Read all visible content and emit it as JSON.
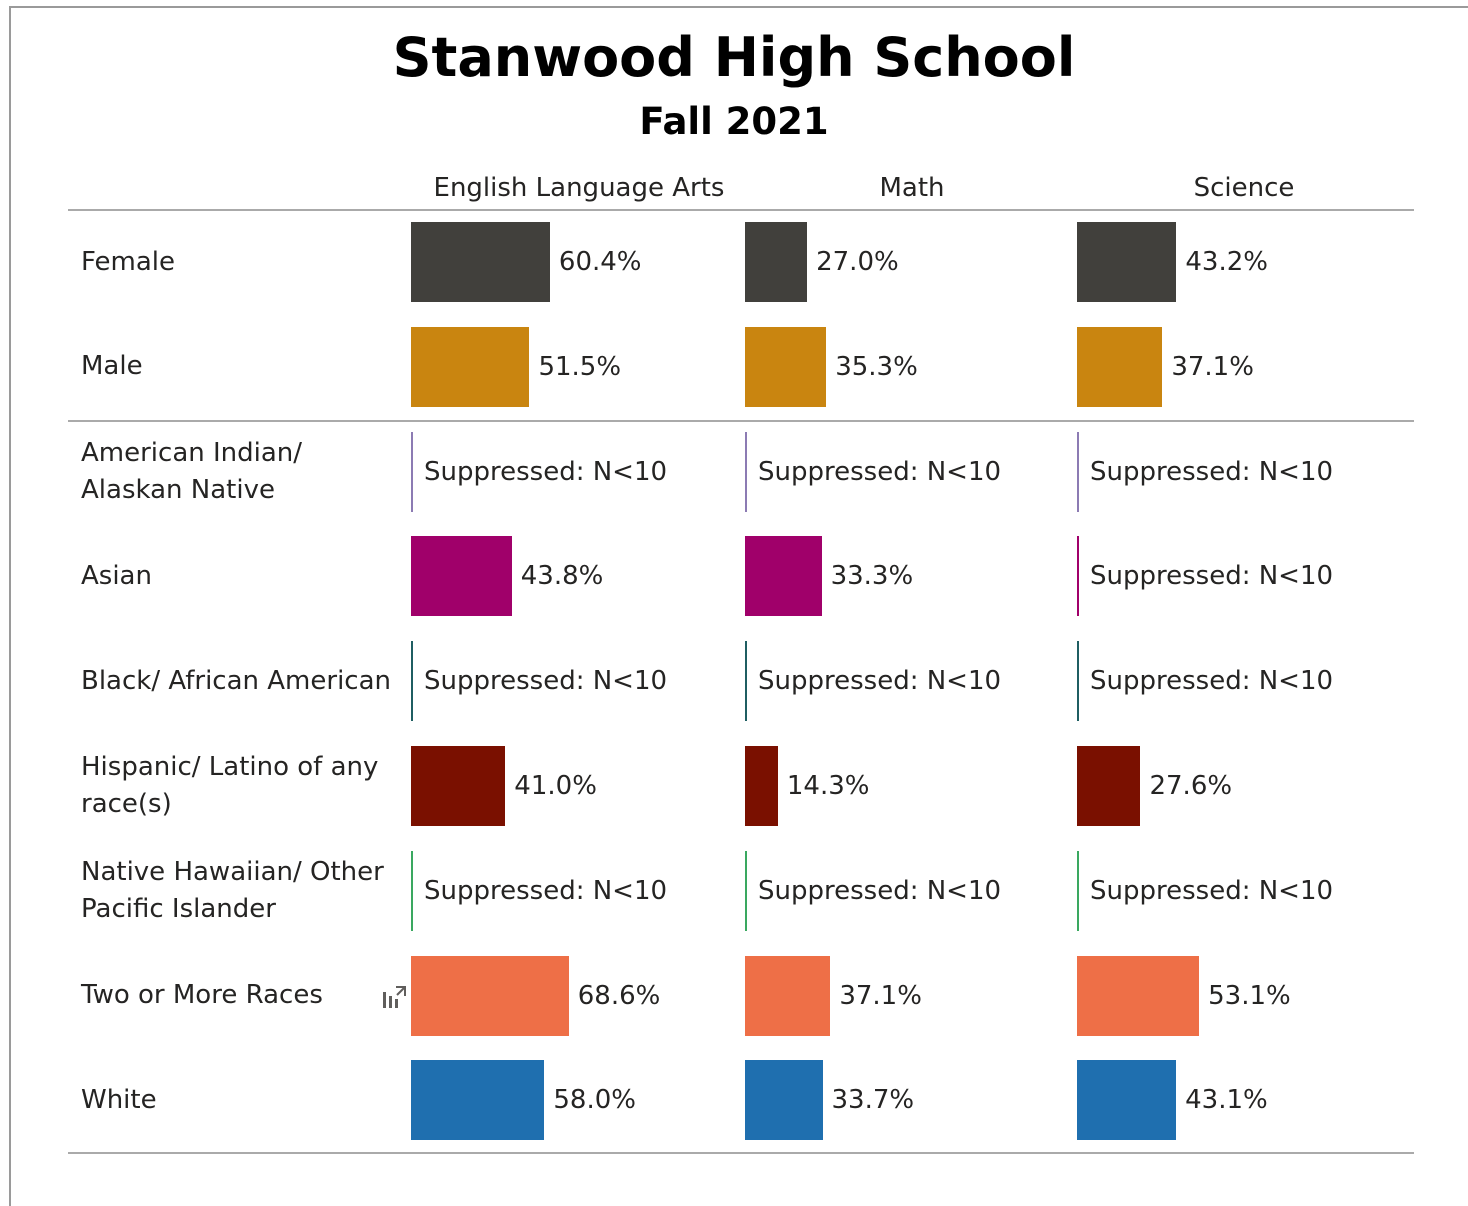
{
  "chart_data": {
    "type": "bar",
    "title": "Stanwood High School",
    "subtitle": "Fall 2021",
    "subjects": [
      "English Language Arts",
      "Math",
      "Science"
    ],
    "groups": [
      {
        "label": "Female",
        "color": "#41403c",
        "values": [
          60.4,
          27.0,
          43.2
        ]
      },
      {
        "label": "Male",
        "color": "#c98510",
        "values": [
          51.5,
          35.3,
          37.1
        ]
      },
      {
        "label": "American Indian/ Alaskan Native",
        "color": "#8c7bb3",
        "values": [
          null,
          null,
          null
        ]
      },
      {
        "label": "Asian",
        "color": "#a0006a",
        "values": [
          43.8,
          33.3,
          null
        ]
      },
      {
        "label": "Black/ African American",
        "color": "#1f5e62",
        "values": [
          null,
          null,
          null
        ]
      },
      {
        "label": "Hispanic/ Latino of any race(s)",
        "color": "#7a1000",
        "values": [
          41.0,
          14.3,
          27.6
        ]
      },
      {
        "label": "Native Hawaiian/ Other Pacific Islander",
        "color": "#3aa860",
        "values": [
          null,
          null,
          null
        ]
      },
      {
        "label": "Two or More Races",
        "color": "#ee6f47",
        "values": [
          68.6,
          37.1,
          53.1
        ]
      },
      {
        "label": "White",
        "color": "#1f6faf",
        "values": [
          58.0,
          33.7,
          43.1
        ]
      }
    ],
    "suppressed_label": "Suppressed: N<10",
    "value_format": "percent_one_decimal",
    "xlim": [
      0,
      100
    ]
  },
  "icons": {
    "focus_mode": "focus-mode-icon"
  }
}
